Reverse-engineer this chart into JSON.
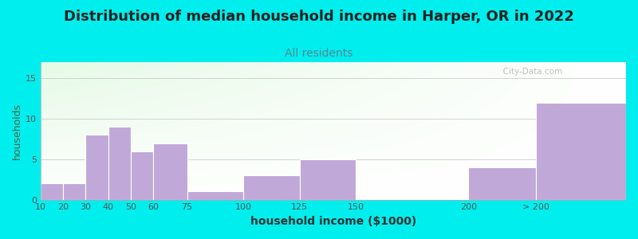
{
  "title": "Distribution of median household income in Harper, OR in 2022",
  "subtitle": "All residents",
  "xlabel": "household income ($1000)",
  "ylabel": "households",
  "background_color": "#00EEEE",
  "bar_color": "#C0A8D8",
  "bar_edge_color": "#C0A8D8",
  "title_fontsize": 13,
  "subtitle_fontsize": 10,
  "subtitle_color": "#558899",
  "ylabel_color": "#446644",
  "xlabel_color": "#333333",
  "bins_left": [
    10,
    20,
    30,
    40,
    50,
    60,
    75,
    100,
    125,
    150,
    200,
    230
  ],
  "bins_right": [
    20,
    30,
    40,
    50,
    60,
    75,
    100,
    125,
    150,
    200,
    230,
    270
  ],
  "heights": [
    2,
    2,
    8,
    9,
    6,
    7,
    1,
    3,
    5,
    0,
    4,
    12
  ],
  "xtick_labels": [
    "10",
    "20",
    "30",
    "40",
    "50",
    "60",
    "75",
    "100",
    "125",
    "150",
    "200",
    "> 200"
  ],
  "xtick_positions": [
    10,
    20,
    30,
    40,
    50,
    60,
    75,
    100,
    125,
    150,
    200,
    230
  ],
  "ylim": [
    0,
    17
  ],
  "yticks": [
    0,
    5,
    10,
    15
  ],
  "watermark": "  City-Data.com"
}
